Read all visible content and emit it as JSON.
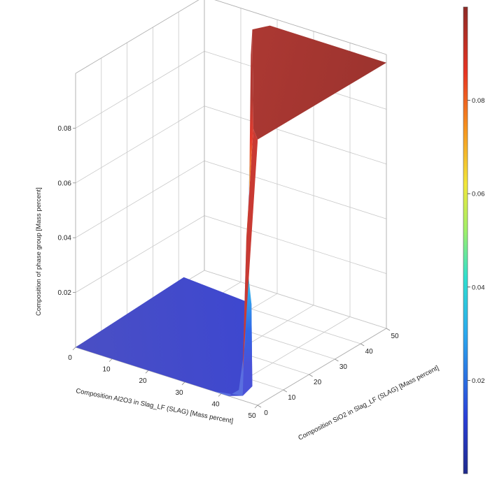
{
  "chart_data": {
    "type": "surface3d",
    "title": "",
    "xlabel": "Composition Al2O3 in Slag_LF (SLAG) [Mass percent]",
    "ylabel": "Composition SiO2 in Slag_LF (SLAG) [Mass percent]",
    "zlabel": "Composition of phase group [Mass percent]",
    "x_ticks": [
      "0",
      "10",
      "20",
      "30",
      "40",
      "50"
    ],
    "y_ticks": [
      "0",
      "10",
      "20",
      "30",
      "40",
      "50"
    ],
    "z_ticks": [
      "0.02",
      "0.04",
      "0.06",
      "0.08"
    ],
    "colorbar_ticks": [
      "0.02",
      "0.04",
      "0.06",
      "0.08"
    ],
    "xlim": [
      0,
      50
    ],
    "ylim": [
      0,
      50
    ],
    "zlim": [
      0,
      0.1
    ],
    "colormap": "jet",
    "colorbar_range": [
      0.0,
      0.1
    ],
    "surface_description_points": [
      {
        "x": 0,
        "y": 0,
        "z": 0.0
      },
      {
        "x": 40,
        "y": 0,
        "z": 0.0
      },
      {
        "x": 44,
        "y": 0,
        "z": 0.0
      },
      {
        "x": 46,
        "y": 0,
        "z": 0.097
      },
      {
        "x": 50,
        "y": 0,
        "z": 0.097
      },
      {
        "x": 0,
        "y": 40,
        "z": 0.0
      },
      {
        "x": 20,
        "y": 46,
        "z": 0.097
      },
      {
        "x": 50,
        "y": 50,
        "z": 0.097
      }
    ]
  }
}
